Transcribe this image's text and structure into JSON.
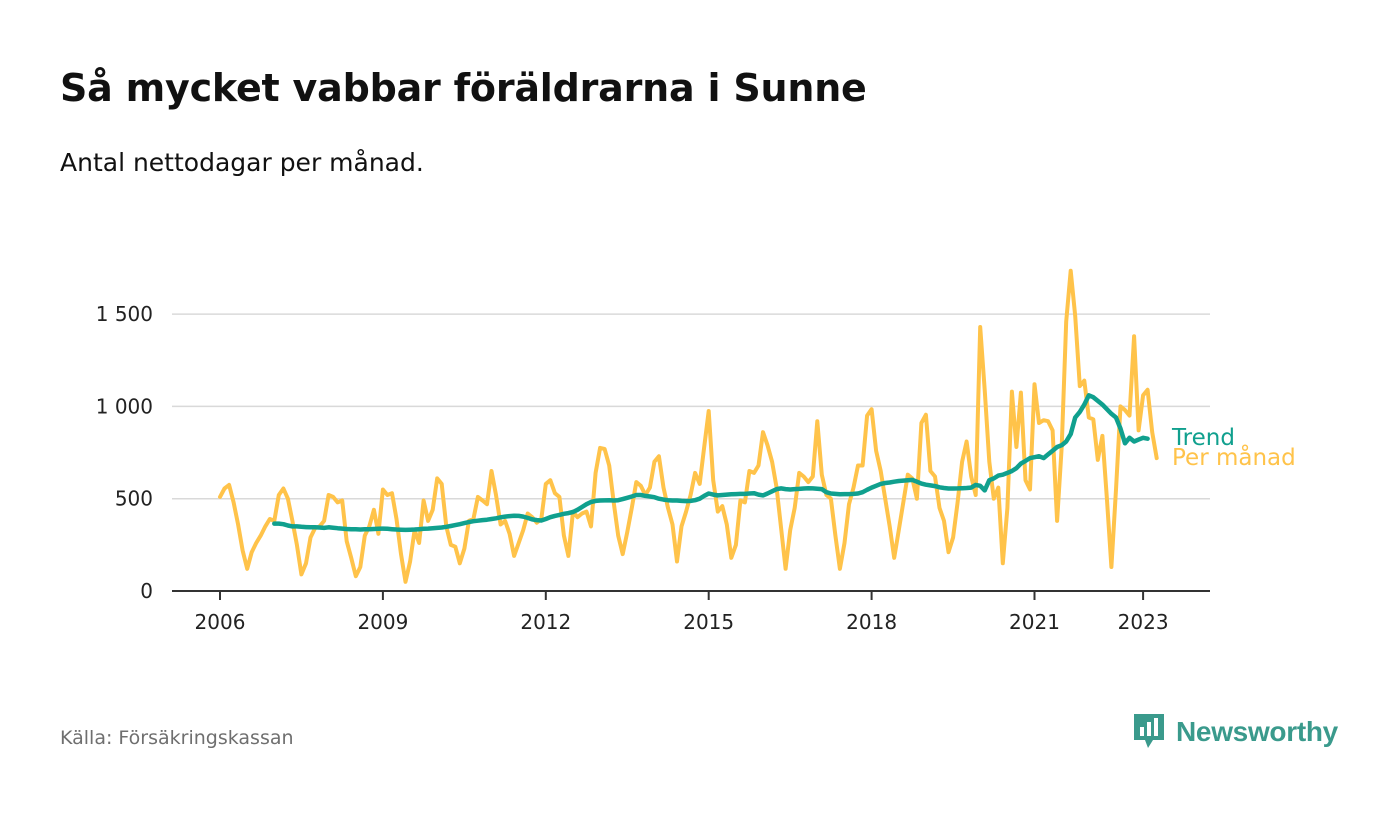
{
  "title": "Så mycket vabbar föräldrarna i Sunne",
  "subtitle": "Antal nettodagar per månad.",
  "source": "Källa: Försäkringskassan",
  "brand": {
    "name": "Newsworthy",
    "icon": "bar-chart-bubble-icon"
  },
  "colors": {
    "trend": "#10a08e",
    "monthly": "#ffc34a",
    "grid": "#d9d9d9",
    "axis": "#333333",
    "brand": "#3a9a8c"
  },
  "chart_data": {
    "type": "line",
    "title": "Så mycket vabbar föräldrarna i Sunne",
    "subtitle": "Antal nettodagar per månad.",
    "xlabel": "",
    "ylabel": "",
    "x_start": "2006-01",
    "x_ticks": [
      "2006",
      "2009",
      "2012",
      "2015",
      "2018",
      "2021",
      "2023"
    ],
    "y_ticks": [
      0,
      500,
      1000,
      1500
    ],
    "y_tick_labels": [
      "0",
      "500",
      "1 000",
      "1 500"
    ],
    "ylim": [
      0,
      1800
    ],
    "grid": true,
    "legend": "inline-right",
    "series": [
      {
        "name": "Per månad",
        "color": "#ffc34a",
        "start": "2006-01",
        "values": [
          510,
          555,
          575,
          480,
          360,
          220,
          120,
          210,
          260,
          300,
          350,
          390,
          380,
          520,
          555,
          500,
          380,
          250,
          90,
          150,
          290,
          340,
          350,
          380,
          520,
          510,
          480,
          490,
          270,
          180,
          80,
          130,
          300,
          350,
          440,
          310,
          550,
          520,
          530,
          390,
          200,
          50,
          160,
          330,
          260,
          490,
          380,
          440,
          610,
          580,
          350,
          250,
          240,
          150,
          230,
          380,
          390,
          510,
          490,
          470,
          650,
          520,
          360,
          380,
          310,
          190,
          260,
          330,
          420,
          400,
          370,
          390,
          580,
          600,
          530,
          510,
          300,
          190,
          430,
          400,
          420,
          430,
          350,
          640,
          775,
          770,
          680,
          480,
          300,
          200,
          320,
          450,
          590,
          570,
          520,
          560,
          700,
          730,
          560,
          450,
          360,
          160,
          350,
          430,
          520,
          640,
          580,
          780,
          975,
          600,
          430,
          460,
          360,
          180,
          250,
          490,
          480,
          650,
          640,
          680,
          860,
          790,
          700,
          560,
          340,
          120,
          330,
          450,
          640,
          620,
          590,
          620,
          920,
          630,
          520,
          500,
          300,
          120,
          260,
          470,
          560,
          680,
          680,
          950,
          985,
          760,
          650,
          500,
          350,
          180,
          330,
          480,
          630,
          610,
          500,
          910,
          955,
          650,
          620,
          450,
          380,
          210,
          290,
          480,
          700,
          810,
          620,
          520,
          1430,
          1090,
          700,
          500,
          560,
          150,
          450,
          1080,
          780,
          1075,
          600,
          550,
          1120,
          910,
          925,
          920,
          870,
          380,
          780,
          1460,
          1735,
          1490,
          1110,
          1140,
          940,
          930,
          710,
          840,
          500,
          130,
          550,
          1000,
          980,
          950,
          1380,
          870,
          1060,
          1090,
          860,
          720
        ]
      },
      {
        "name": "Trend",
        "color": "#10a08e",
        "start": "2007-01",
        "values": [
          365,
          365,
          362,
          355,
          350,
          350,
          348,
          346,
          345,
          345,
          344,
          342,
          345,
          343,
          340,
          338,
          336,
          335,
          334,
          333,
          334,
          335,
          336,
          337,
          338,
          337,
          335,
          333,
          332,
          331,
          332,
          333,
          335,
          337,
          338,
          340,
          342,
          344,
          348,
          352,
          357,
          362,
          368,
          373,
          378,
          381,
          384,
          386,
          390,
          394,
          399,
          403,
          406,
          408,
          407,
          403,
          396,
          388,
          384,
          382,
          390,
          400,
          407,
          412,
          418,
          422,
          428,
          440,
          455,
          470,
          482,
          488,
          490,
          491,
          492,
          490,
          492,
          498,
          505,
          512,
          520,
          520,
          515,
          512,
          508,
          500,
          495,
          492,
          490,
          490,
          488,
          487,
          488,
          492,
          500,
          515,
          528,
          522,
          518,
          520,
          522,
          524,
          525,
          526,
          526,
          528,
          530,
          522,
          518,
          528,
          540,
          552,
          556,
          552,
          550,
          552,
          553,
          555,
          557,
          556,
          554,
          552,
          535,
          528,
          526,
          524,
          525,
          525,
          526,
          528,
          535,
          548,
          560,
          570,
          580,
          585,
          588,
          592,
          596,
          598,
          600,
          602,
          592,
          582,
          576,
          572,
          568,
          562,
          558,
          555,
          555,
          556,
          557,
          558,
          560,
          575,
          570,
          545,
          600,
          610,
          625,
          630,
          640,
          650,
          665,
          690,
          705,
          720,
          725,
          730,
          720,
          740,
          760,
          780,
          790,
          810,
          850,
          940,
          970,
          1010,
          1060,
          1050,
          1030,
          1010,
          985,
          960,
          940,
          880,
          800,
          830,
          810,
          820,
          830,
          825
        ]
      }
    ]
  }
}
